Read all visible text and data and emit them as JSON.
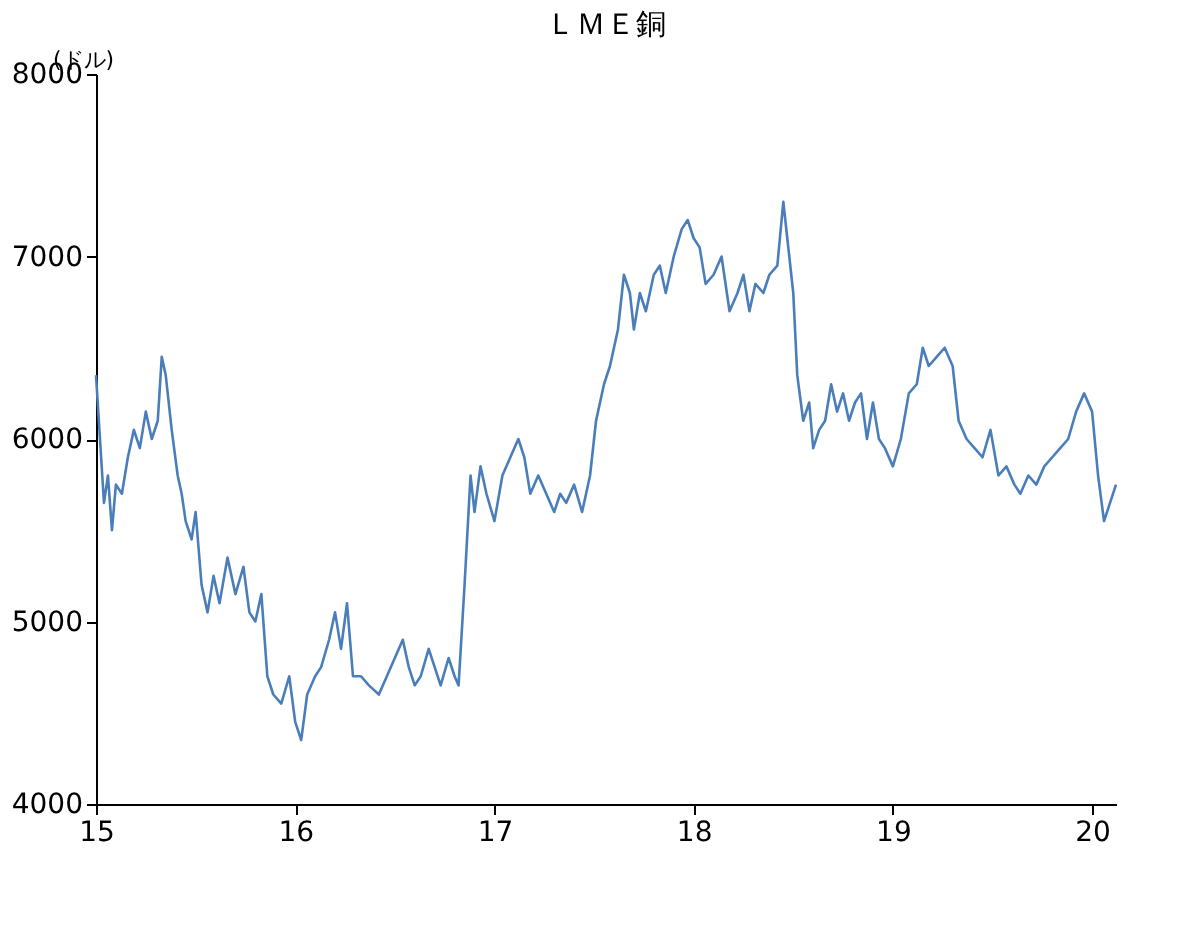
{
  "chart_data": {
    "type": "line",
    "title": "ＬＭＥ銅",
    "ylabel": "(ドル)",
    "xlim": [
      15,
      20.12
    ],
    "xticks": [
      15,
      16,
      17,
      18,
      19,
      20
    ],
    "ylim": [
      4000,
      8000
    ],
    "yticks": [
      4000,
      5000,
      6000,
      7000,
      8000
    ],
    "grid": false,
    "marker": "none",
    "line_style": "solid",
    "x": [
      15.0,
      15.02,
      15.04,
      15.06,
      15.08,
      15.1,
      15.13,
      15.16,
      15.19,
      15.22,
      15.25,
      15.28,
      15.31,
      15.33,
      15.35,
      15.38,
      15.41,
      15.43,
      15.45,
      15.48,
      15.5,
      15.53,
      15.56,
      15.59,
      15.62,
      15.66,
      15.7,
      15.74,
      15.77,
      15.8,
      15.83,
      15.86,
      15.89,
      15.93,
      15.97,
      16.0,
      16.03,
      16.06,
      16.1,
      16.13,
      16.17,
      16.2,
      16.23,
      16.26,
      16.29,
      16.33,
      16.37,
      16.42,
      16.46,
      16.5,
      16.54,
      16.57,
      16.6,
      16.63,
      16.67,
      16.7,
      16.73,
      16.77,
      16.8,
      16.82,
      16.85,
      16.88,
      16.9,
      16.93,
      16.96,
      17.0,
      17.04,
      17.08,
      17.12,
      17.15,
      17.18,
      17.22,
      17.26,
      17.3,
      17.33,
      17.36,
      17.4,
      17.44,
      17.48,
      17.51,
      17.55,
      17.58,
      17.62,
      17.65,
      17.68,
      17.7,
      17.73,
      17.76,
      17.8,
      17.83,
      17.86,
      17.9,
      17.94,
      17.97,
      18.0,
      18.03,
      18.06,
      18.1,
      18.14,
      18.18,
      18.22,
      18.25,
      18.28,
      18.31,
      18.35,
      18.38,
      18.42,
      18.45,
      18.47,
      18.5,
      18.52,
      18.55,
      18.58,
      18.6,
      18.63,
      18.66,
      18.69,
      18.72,
      18.75,
      18.78,
      18.81,
      18.84,
      18.87,
      18.9,
      18.93,
      18.96,
      19.0,
      19.04,
      19.08,
      19.12,
      19.15,
      19.18,
      19.22,
      19.26,
      19.3,
      19.33,
      19.37,
      19.41,
      19.45,
      19.49,
      19.53,
      19.57,
      19.61,
      19.64,
      19.68,
      19.72,
      19.76,
      19.8,
      19.84,
      19.88,
      19.92,
      19.96,
      20.0,
      20.03,
      20.06,
      20.09,
      20.12
    ],
    "series": [
      {
        "color": "#4a7ebb",
        "values": [
          6350,
          6000,
          5650,
          5800,
          5500,
          5750,
          5700,
          5900,
          6050,
          5950,
          6150,
          6000,
          6100,
          6450,
          6350,
          6050,
          5800,
          5700,
          5550,
          5450,
          5600,
          5200,
          5050,
          5250,
          5100,
          5350,
          5150,
          5300,
          5050,
          5000,
          5150,
          4700,
          4600,
          4550,
          4700,
          4450,
          4350,
          4600,
          4700,
          4750,
          4900,
          5050,
          4850,
          5100,
          4700,
          4700,
          4650,
          4600,
          4700,
          4800,
          4900,
          4750,
          4650,
          4700,
          4850,
          4750,
          4650,
          4800,
          4700,
          4650,
          5200,
          5800,
          5600,
          5850,
          5700,
          5550,
          5800,
          5900,
          6000,
          5900,
          5700,
          5800,
          5700,
          5600,
          5700,
          5650,
          5750,
          5600,
          5800,
          6100,
          6300,
          6400,
          6600,
          6900,
          6800,
          6600,
          6800,
          6700,
          6900,
          6950,
          6800,
          7000,
          7150,
          7200,
          7100,
          7050,
          6850,
          6900,
          7000,
          6700,
          6800,
          6900,
          6700,
          6850,
          6800,
          6900,
          6950,
          7300,
          7100,
          6800,
          6350,
          6100,
          6200,
          5950,
          6050,
          6100,
          6300,
          6150,
          6250,
          6100,
          6200,
          6250,
          6000,
          6200,
          6000,
          5950,
          5850,
          6000,
          6250,
          6300,
          6500,
          6400,
          6450,
          6500,
          6400,
          6100,
          6000,
          5950,
          5900,
          6050,
          5800,
          5850,
          5750,
          5700,
          5800,
          5750,
          5850,
          5900,
          5950,
          6000,
          6150,
          6250,
          6150,
          5800,
          5550,
          5650,
          5750
        ]
      }
    ]
  }
}
